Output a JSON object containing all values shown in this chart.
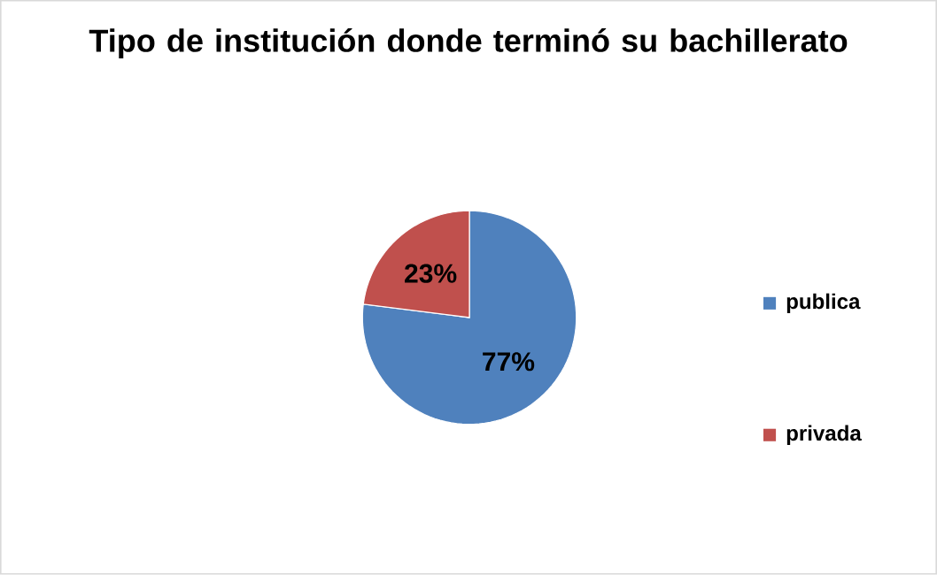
{
  "chart_data": {
    "type": "pie",
    "title": "Tipo de institución donde terminó su bachillerato",
    "categories": [
      "publica",
      "privada"
    ],
    "values": [
      77,
      23
    ],
    "value_labels": [
      "77%",
      "23%"
    ],
    "colors": [
      "#4f81bd",
      "#c0504d"
    ],
    "legend": "right"
  }
}
